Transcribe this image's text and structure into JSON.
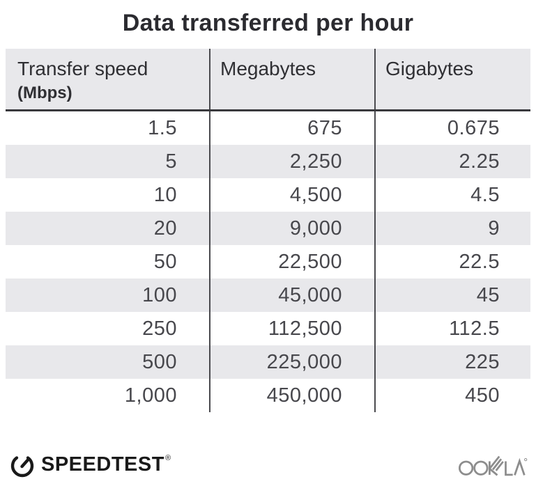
{
  "title": "Data transferred per hour",
  "table": {
    "headers": [
      {
        "label": "Transfer speed",
        "unit": "(Mbps)"
      },
      {
        "label": "Megabytes"
      },
      {
        "label": "Gigabytes"
      }
    ],
    "rows": [
      {
        "speed": "1.5",
        "megabytes": "675",
        "gigabytes": "0.675"
      },
      {
        "speed": "5",
        "megabytes": "2,250",
        "gigabytes": "2.25"
      },
      {
        "speed": "10",
        "megabytes": "4,500",
        "gigabytes": "4.5"
      },
      {
        "speed": "20",
        "megabytes": "9,000",
        "gigabytes": "9"
      },
      {
        "speed": "50",
        "megabytes": "22,500",
        "gigabytes": "22.5"
      },
      {
        "speed": "100",
        "megabytes": "45,000",
        "gigabytes": "45"
      },
      {
        "speed": "250",
        "megabytes": "112,500",
        "gigabytes": "112.5"
      },
      {
        "speed": "500",
        "megabytes": "225,000",
        "gigabytes": "225"
      },
      {
        "speed": "1,000",
        "megabytes": "450,000",
        "gigabytes": "450"
      }
    ]
  },
  "footer": {
    "speedtest_label": "SPEEDTEST",
    "speedtest_mark": "®",
    "ookla_label": "OOKLA",
    "ookla_mark": "®"
  },
  "colors": {
    "header_bg": "#e8e8eb",
    "row_alt_bg": "#e8e8eb",
    "divider": "#4a4a4e",
    "header_rule": "#39393d",
    "title_text": "#2b2b30",
    "cell_text": "#47474c",
    "speedtest_black": "#1a1a1a",
    "ookla_gray": "#8d8d8d"
  },
  "chart_data": {
    "type": "table",
    "title": "Data transferred per hour",
    "columns": [
      "Transfer speed (Mbps)",
      "Megabytes",
      "Gigabytes"
    ],
    "rows": [
      [
        1.5,
        675,
        0.675
      ],
      [
        5,
        2250,
        2.25
      ],
      [
        10,
        4500,
        4.5
      ],
      [
        20,
        9000,
        9
      ],
      [
        50,
        22500,
        22.5
      ],
      [
        100,
        45000,
        45
      ],
      [
        250,
        112500,
        112.5
      ],
      [
        500,
        225000,
        225
      ],
      [
        1000,
        450000,
        450
      ]
    ]
  }
}
